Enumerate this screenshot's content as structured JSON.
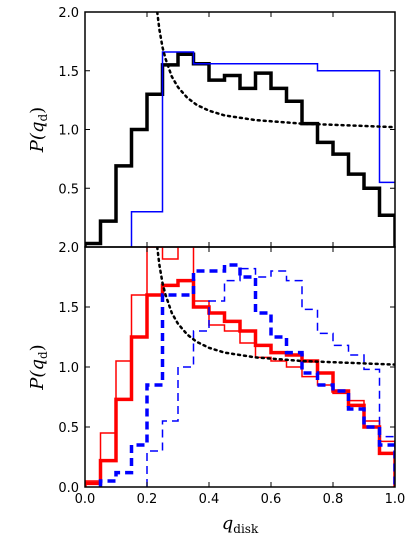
{
  "chart_data": [
    {
      "type": "line",
      "panel": "top",
      "xlabel": "",
      "ylabel": "P(q_d)",
      "ylabel_main": "P(q",
      "ylabel_sub": "d",
      "ylabel_close": ")",
      "xlim": [
        0.0,
        1.0
      ],
      "ylim": [
        0.0,
        2.0
      ],
      "yticks": [
        "0.5",
        "1.0",
        "1.5",
        "2.0"
      ],
      "ytick_values": [
        0.5,
        1.0,
        1.5,
        2.0
      ],
      "series": [
        {
          "style": "step",
          "color": "#000000",
          "lw": 3.5,
          "dash": "solid",
          "edges": [
            0.0,
            0.05,
            0.1,
            0.15,
            0.2,
            0.25,
            0.3,
            0.35,
            0.4,
            0.45,
            0.5,
            0.55,
            0.6,
            0.65,
            0.7,
            0.75,
            0.8,
            0.85,
            0.9,
            0.95,
            1.0
          ],
          "values": [
            0.03,
            0.22,
            0.69,
            1.0,
            1.3,
            1.55,
            1.64,
            1.56,
            1.42,
            1.46,
            1.35,
            1.48,
            1.35,
            1.24,
            1.05,
            0.89,
            0.79,
            0.62,
            0.5,
            0.27
          ]
        },
        {
          "style": "step",
          "color": "#0000ff",
          "lw": 1.5,
          "dash": "solid",
          "edges": [
            0.15,
            0.25,
            0.35,
            0.75,
            0.9,
            0.95,
            1.0
          ],
          "values": [
            0.3,
            1.66,
            1.56,
            1.5,
            1.5,
            0.55,
            0.55
          ]
        },
        {
          "style": "curve",
          "color": "#000000",
          "lw": 2.5,
          "dash": "2,4",
          "x": [
            0.233,
            0.24,
            0.25,
            0.26,
            0.28,
            0.3,
            0.33,
            0.36,
            0.4,
            0.45,
            0.5,
            0.55,
            0.6,
            0.65,
            0.7,
            0.75,
            0.8,
            0.85,
            0.9,
            0.95,
            1.0
          ],
          "values": [
            2.0,
            1.85,
            1.7,
            1.6,
            1.45,
            1.36,
            1.27,
            1.21,
            1.16,
            1.12,
            1.1,
            1.08,
            1.07,
            1.06,
            1.05,
            1.045,
            1.04,
            1.035,
            1.03,
            1.025,
            1.02
          ]
        }
      ]
    },
    {
      "type": "line",
      "panel": "bottom",
      "xlabel": "q_disk",
      "xlabel_main": "q",
      "xlabel_sub": "disk",
      "ylabel": "P(q_d)",
      "ylabel_main": "P(q",
      "ylabel_sub": "d",
      "ylabel_close": ")",
      "xlim": [
        0.0,
        1.0
      ],
      "ylim": [
        0.0,
        2.0
      ],
      "xticks": [
        "0.0",
        "0.2",
        "0.4",
        "0.6",
        "0.8",
        "1.0"
      ],
      "xtick_values": [
        0.0,
        0.2,
        0.4,
        0.6,
        0.8,
        1.0
      ],
      "yticks": [
        "0.0",
        "0.5",
        "1.0",
        "1.5",
        "2.0"
      ],
      "ytick_values": [
        0.0,
        0.5,
        1.0,
        1.5,
        2.0
      ],
      "series": [
        {
          "style": "step",
          "color": "#ff0000",
          "lw": 1.5,
          "dash": "solid",
          "edges": [
            0.0,
            0.05,
            0.1,
            0.15,
            0.2,
            0.25,
            0.3,
            0.35,
            0.4,
            0.45,
            0.5,
            0.55,
            0.6,
            0.65,
            0.7,
            0.75,
            0.8,
            0.85,
            0.9,
            0.95,
            1.0
          ],
          "values": [
            0.05,
            0.45,
            1.05,
            1.6,
            2.0,
            1.9,
            2.3,
            1.55,
            1.35,
            1.3,
            1.2,
            1.08,
            1.05,
            1.0,
            0.92,
            0.85,
            0.78,
            0.72,
            0.55,
            0.38
          ]
        },
        {
          "style": "step",
          "color": "#ff0000",
          "lw": 3.5,
          "dash": "solid",
          "edges": [
            0.0,
            0.05,
            0.1,
            0.15,
            0.2,
            0.25,
            0.3,
            0.35,
            0.4,
            0.45,
            0.5,
            0.55,
            0.6,
            0.65,
            0.7,
            0.75,
            0.8,
            0.85,
            0.9,
            0.95,
            1.0
          ],
          "values": [
            0.03,
            0.22,
            0.73,
            1.25,
            1.6,
            1.68,
            1.72,
            1.5,
            1.45,
            1.38,
            1.3,
            1.18,
            1.12,
            1.1,
            1.05,
            0.95,
            0.8,
            0.68,
            0.5,
            0.28
          ]
        },
        {
          "style": "step",
          "color": "#0000ff",
          "lw": 3.5,
          "dash": "8,5",
          "edges": [
            0.05,
            0.1,
            0.15,
            0.2,
            0.25,
            0.3,
            0.35,
            0.4,
            0.45,
            0.5,
            0.55,
            0.6,
            0.65,
            0.7,
            0.75,
            0.8,
            0.85,
            0.9,
            0.95,
            1.0
          ],
          "values": [
            0.05,
            0.12,
            0.35,
            0.85,
            1.6,
            1.6,
            1.8,
            1.8,
            1.85,
            1.75,
            1.45,
            1.25,
            1.12,
            0.95,
            0.85,
            0.8,
            0.65,
            0.5,
            0.35
          ]
        },
        {
          "style": "step",
          "color": "#0000ff",
          "lw": 1.5,
          "dash": "8,5",
          "edges": [
            0.2,
            0.25,
            0.3,
            0.35,
            0.4,
            0.45,
            0.5,
            0.55,
            0.6,
            0.65,
            0.7,
            0.75,
            0.8,
            0.85,
            0.9,
            0.95,
            1.0
          ],
          "values": [
            0.3,
            0.55,
            1.0,
            1.3,
            1.55,
            1.72,
            1.82,
            1.75,
            1.8,
            1.72,
            1.48,
            1.28,
            1.18,
            1.1,
            0.98,
            0.42,
            0.32
          ]
        },
        {
          "style": "curve",
          "color": "#000000",
          "lw": 2.5,
          "dash": "2,4",
          "x": [
            0.233,
            0.24,
            0.25,
            0.26,
            0.28,
            0.3,
            0.33,
            0.36,
            0.4,
            0.45,
            0.5,
            0.55,
            0.6,
            0.65,
            0.7,
            0.75,
            0.8,
            0.85,
            0.9,
            0.95,
            1.0
          ],
          "values": [
            2.0,
            1.85,
            1.7,
            1.6,
            1.45,
            1.36,
            1.27,
            1.21,
            1.16,
            1.12,
            1.1,
            1.08,
            1.07,
            1.06,
            1.05,
            1.045,
            1.04,
            1.035,
            1.03,
            1.025,
            1.02
          ]
        }
      ]
    }
  ]
}
